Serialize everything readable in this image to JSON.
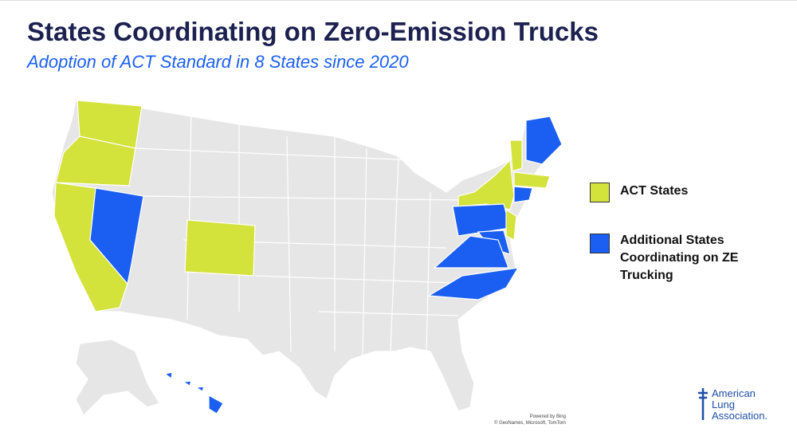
{
  "header": {
    "title": "States Coordinating on Zero-Emission Trucks",
    "subtitle": "Adoption of ACT Standard in 8 States since 2020"
  },
  "legend": [
    {
      "label": "ACT States",
      "color": "#d4e23c"
    },
    {
      "label": [
        "Additional States",
        "Coordinating on ZE",
        "Trucking"
      ],
      "color": "#1a5ff2"
    }
  ],
  "attribution": [
    "Powered by Bing",
    "© GeoNames, Microsoft, TomTom"
  ],
  "logo": [
    "American",
    "Lung",
    "Association."
  ]
}
